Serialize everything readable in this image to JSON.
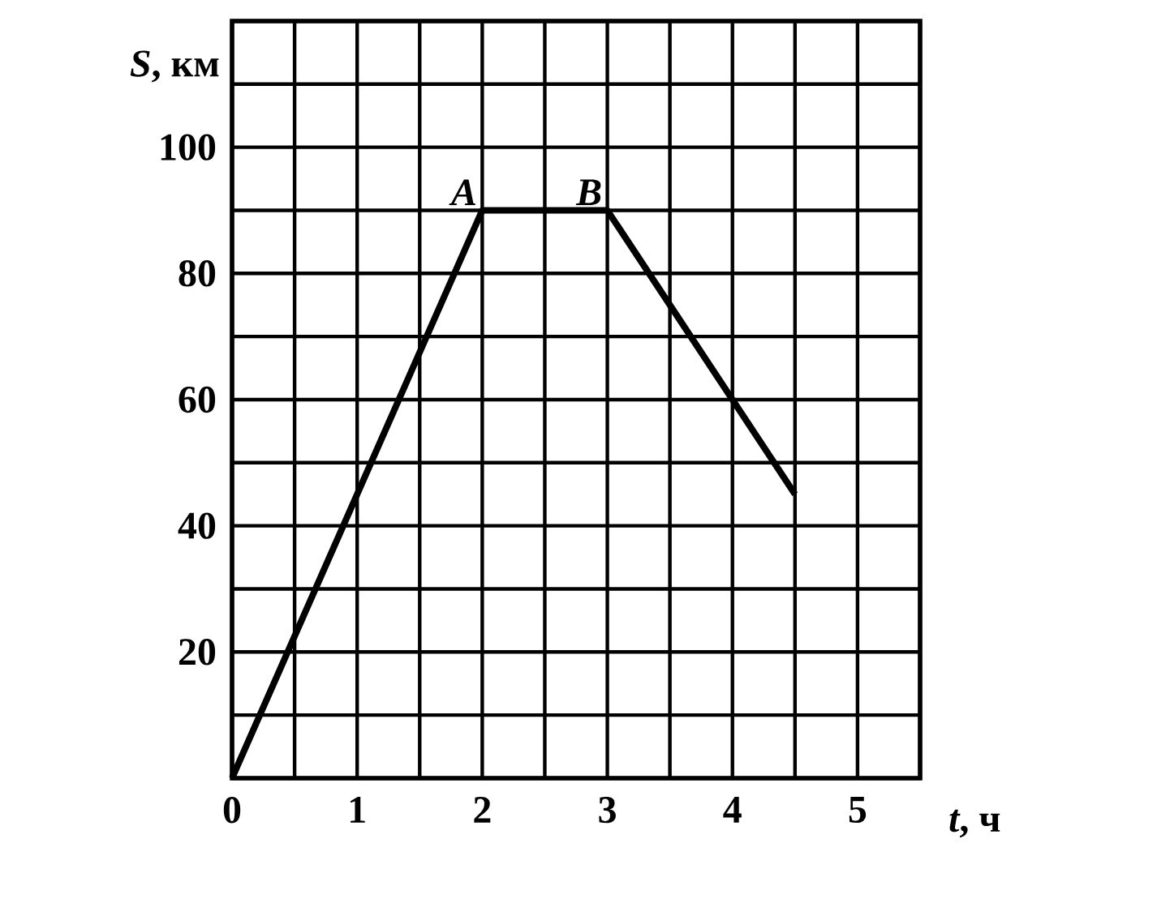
{
  "chart_data": {
    "type": "line",
    "xlabel": "*t*, ч",
    "ylabel": "*S*, км",
    "x": [
      0,
      2,
      3,
      4.5
    ],
    "series": [
      {
        "color": "#000000",
        "values": [
          0,
          90,
          90,
          45
        ]
      }
    ],
    "xlim": [
      0,
      5.5
    ],
    "ylim": [
      0,
      120
    ],
    "xticks": [
      0,
      {
        "value": 0.5,
        "label": null
      },
      1,
      {
        "value": 1.5,
        "label": null
      },
      2,
      {
        "value": 2.5,
        "label": null
      },
      3,
      {
        "value": 3.5,
        "label": null
      },
      4,
      {
        "value": 4.5,
        "label": null
      },
      5,
      {
        "value": 5.5,
        "label": null
      }
    ],
    "yticks": [
      {
        "value": 0,
        "label": null
      },
      {
        "value": 10,
        "label": null
      },
      20,
      {
        "value": 30,
        "label": null
      },
      40,
      {
        "value": 50,
        "label": null
      },
      60,
      {
        "value": 70,
        "label": null
      },
      80,
      {
        "value": 90,
        "label": null
      },
      100,
      {
        "value": 110,
        "label": null
      },
      {
        "value": 120,
        "label": null
      }
    ],
    "annotations": [
      {
        "text": "*A*",
        "x": 2,
        "y": 90
      },
      {
        "text": "*B*",
        "x": 3,
        "y": 90
      }
    ],
    "grid": true,
    "marker": "none",
    "line_style": "solid"
  }
}
